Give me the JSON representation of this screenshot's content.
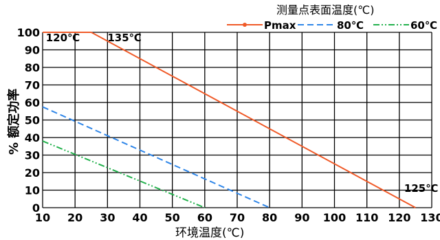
{
  "chart_data": {
    "type": "line",
    "legend_title": "测量点表面温度(℃)",
    "legend_position": "top-right",
    "xlabel": "环境温度(℃)",
    "ylabel": "% 额定功率",
    "xlim": [
      10,
      130
    ],
    "ylim": [
      0,
      100
    ],
    "x_ticks": [
      "10",
      "20",
      "30",
      "40",
      "50",
      "60",
      "70",
      "80",
      "90",
      "100",
      "110",
      "120",
      "130"
    ],
    "y_ticks": [
      "0",
      "10",
      "20",
      "30",
      "40",
      "50",
      "60",
      "70",
      "80",
      "90",
      "100"
    ],
    "grid": true,
    "series": [
      {
        "name": "Pmax",
        "color": "#f05a28",
        "style": "solid-marker",
        "points": [
          [
            10,
            100
          ],
          [
            25,
            100
          ],
          [
            125,
            0
          ]
        ]
      },
      {
        "name": "80℃",
        "color": "#2f86e8",
        "style": "dashed",
        "points": [
          [
            10,
            57.5
          ],
          [
            80,
            0
          ]
        ]
      },
      {
        "name": "60℃",
        "color": "#22b14c",
        "style": "dash-dot",
        "points": [
          [
            10,
            38
          ],
          [
            60,
            0
          ]
        ]
      }
    ],
    "annotations": [
      {
        "text": "120℃",
        "x": 11,
        "y": 95
      },
      {
        "text": "135℃",
        "x": 30,
        "y": 95
      },
      {
        "text": "125℃",
        "x": 121.5,
        "y": 9
      }
    ]
  }
}
